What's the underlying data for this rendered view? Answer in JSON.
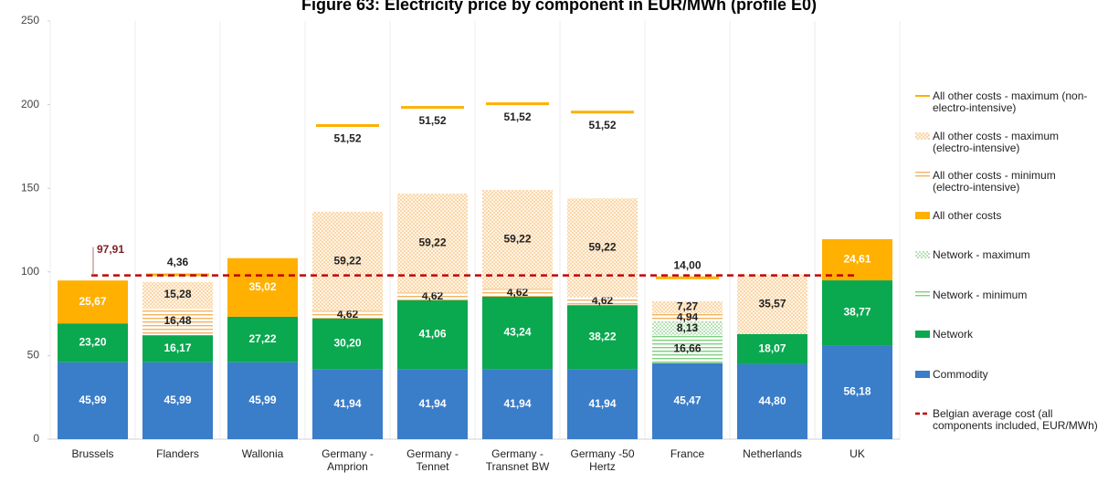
{
  "chart_data": {
    "type": "bar",
    "stacked": true,
    "title": "Figure 63: Electricity price by component in EUR/MWh (profile E0)",
    "categories": [
      "Brussels",
      "Flanders",
      "Wallonia",
      "Germany - Amprion",
      "Germany - Tennet",
      "Germany - Transnet BW",
      "Germany -50 Hertz",
      "France",
      "Netherlands",
      "UK"
    ],
    "series": [
      {
        "name": "Commodity",
        "color": "#3a7dc9",
        "style": "solid",
        "values": [
          45.99,
          45.99,
          45.99,
          41.94,
          41.94,
          41.94,
          41.94,
          45.47,
          44.8,
          56.18
        ],
        "value_labels": [
          "45,99",
          "45,99",
          "45,99",
          "41,94",
          "41,94",
          "41,94",
          "41,94",
          "45,47",
          "44,80",
          "56,18"
        ]
      },
      {
        "name": "Network",
        "color": "#0aa84f",
        "style": "solid",
        "values": [
          23.2,
          16.17,
          27.22,
          30.2,
          41.06,
          43.24,
          38.22,
          null,
          18.07,
          38.77
        ],
        "value_labels": [
          "23,20",
          "16,17",
          "27,22",
          "30,20",
          "41,06",
          "43,24",
          "38,22",
          null,
          "18,07",
          "38,77"
        ]
      },
      {
        "name": "Network - minimum",
        "color": "#7fcf7f",
        "style": "hlines",
        "values": [
          null,
          null,
          null,
          null,
          null,
          null,
          null,
          16.66,
          null,
          null
        ],
        "value_labels": [
          null,
          null,
          null,
          null,
          null,
          null,
          null,
          "16,66",
          null,
          null
        ]
      },
      {
        "name": "Network - maximum",
        "color": "#7fcf7f",
        "style": "grid",
        "values": [
          null,
          null,
          null,
          null,
          null,
          null,
          null,
          8.13,
          null,
          null
        ],
        "value_labels": [
          null,
          null,
          null,
          null,
          null,
          null,
          null,
          "8,13",
          null,
          null
        ]
      },
      {
        "name": "All other costs",
        "color": "#ffb000",
        "style": "solid",
        "values": [
          25.67,
          null,
          35.02,
          null,
          null,
          null,
          null,
          null,
          null,
          24.61
        ],
        "value_labels": [
          "25,67",
          null,
          "35,02",
          null,
          null,
          null,
          null,
          null,
          null,
          "24,61"
        ]
      },
      {
        "name": "All other costs - minimum (electro-intensive)",
        "color": "#f5b461",
        "style": "hlines",
        "values": [
          null,
          16.48,
          null,
          4.62,
          4.62,
          4.62,
          4.62,
          4.94,
          null,
          null
        ],
        "value_labels": [
          null,
          "16,48",
          null,
          "4,62",
          "4,62",
          "4,62",
          "4,62",
          "4,94",
          null,
          null
        ]
      },
      {
        "name": "All other costs - maximum (electro-intensive)",
        "color": "#f5b461",
        "style": "dots",
        "values": [
          null,
          15.28,
          null,
          59.22,
          59.22,
          59.22,
          59.22,
          7.27,
          35.57,
          null
        ],
        "value_labels": [
          null,
          "15,28",
          null,
          "59,22",
          "59,22",
          "59,22",
          "59,22",
          "7,27",
          "35,57",
          null
        ]
      },
      {
        "name": "All other costs - maximum (non-electro-intensive)",
        "color": "#ffb000",
        "style": "line",
        "values": [
          null,
          4.36,
          null,
          51.52,
          51.52,
          51.52,
          51.52,
          14.0,
          null,
          null
        ],
        "value_labels": [
          null,
          "4,36",
          null,
          "51,52",
          "51,52",
          "51,52",
          "51,52",
          "14,00",
          null,
          null
        ]
      }
    ],
    "reference_line": {
      "name": "Belgian average cost (all components included, EUR/MWh)",
      "value": 97.91,
      "value_label": "97,91",
      "color": "#c00000"
    },
    "ylim": [
      0,
      250
    ],
    "yticks": [
      0,
      50,
      100,
      150,
      200,
      250
    ],
    "legend": "right"
  }
}
